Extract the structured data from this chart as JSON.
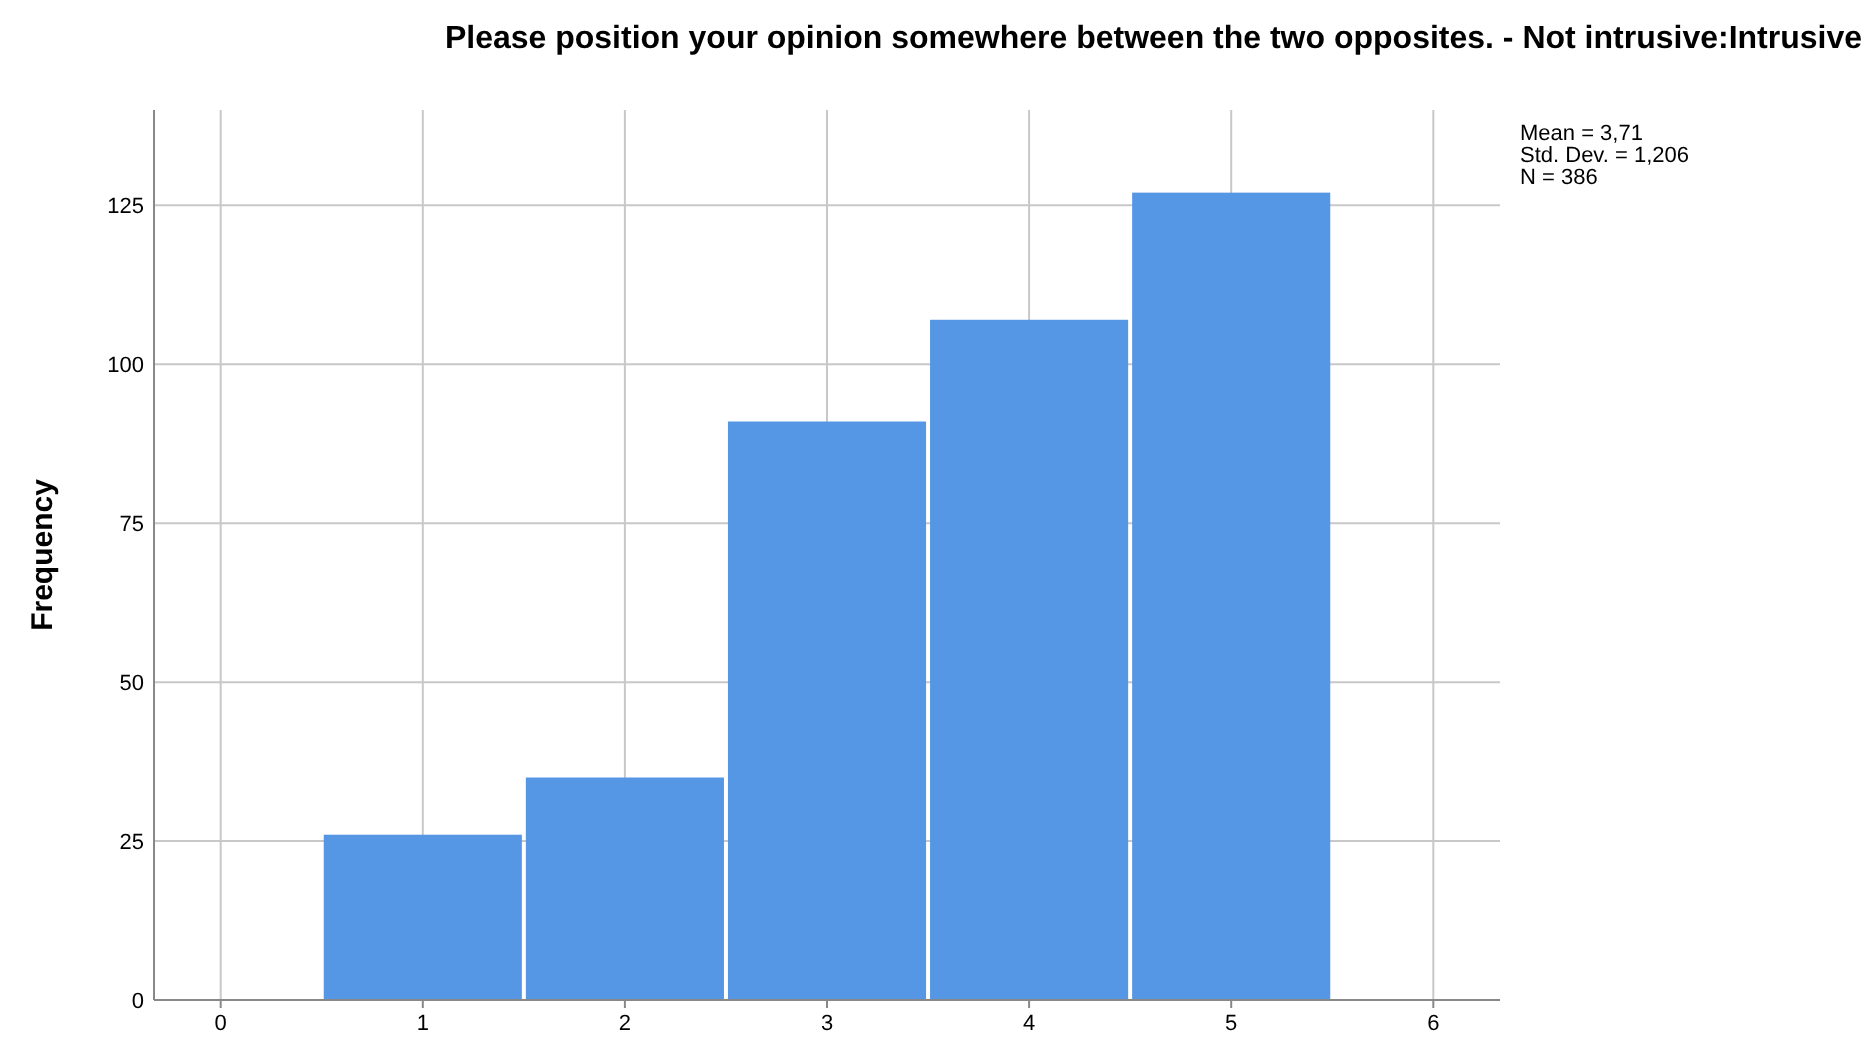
{
  "chart_data": {
    "type": "histogram",
    "title": "Please position your opinion somewhere between the two opposites. - Not intrusive:Intrusive",
    "ylabel": "Frequency",
    "bins": [
      0.5,
      1.5,
      2.5,
      3.5,
      4.5,
      5.5
    ],
    "values": [
      26,
      35,
      91,
      107,
      127
    ],
    "color": "#5596e5",
    "xlim": [
      -0.33,
      6.33
    ],
    "xticks": [
      0,
      1,
      2,
      3,
      4,
      5,
      6
    ],
    "ylim": [
      0,
      140
    ],
    "yticks": [
      0,
      25,
      50,
      75,
      100,
      125
    ],
    "grid": true,
    "annotations": [
      "Mean = 3,71",
      "Std. Dev. = 1,206",
      "N = 386"
    ]
  }
}
